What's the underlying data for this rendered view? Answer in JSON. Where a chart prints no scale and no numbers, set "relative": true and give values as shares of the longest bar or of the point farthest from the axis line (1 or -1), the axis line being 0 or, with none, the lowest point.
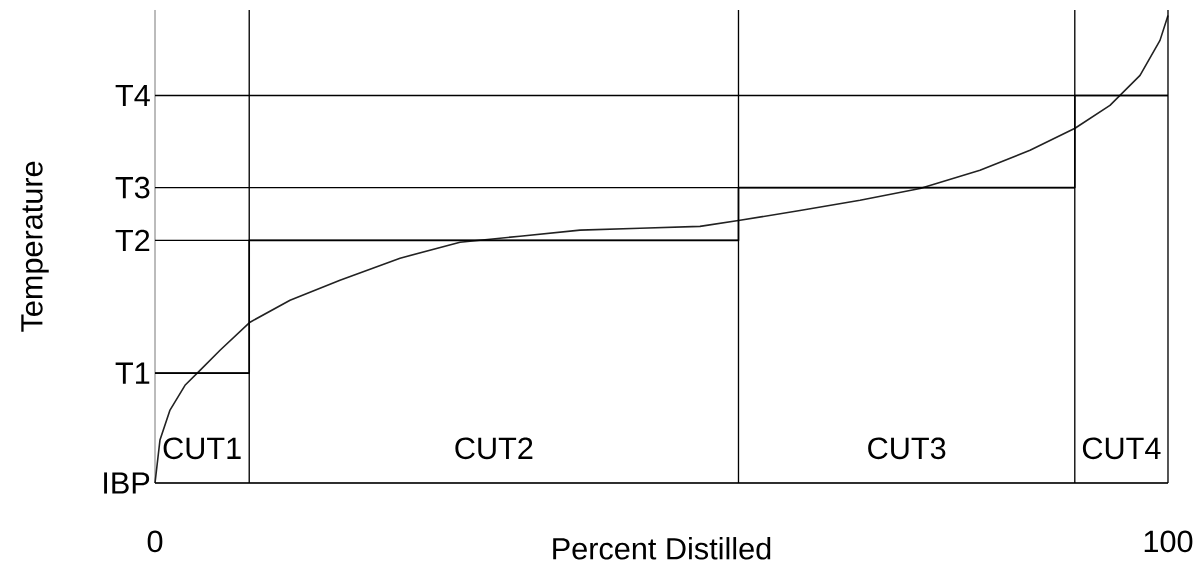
{
  "chart_data": {
    "type": "line",
    "relative": true,
    "xlabel": "Percent Distilled",
    "ylabel": "Temperature",
    "xlim": [
      0,
      100
    ],
    "xticks": [
      0,
      100
    ],
    "series": [
      {
        "color": "#222222",
        "x": [
          0,
          0.49,
          1.48,
          2.96,
          4.44,
          6.42,
          9.38,
          13.33,
          18.26,
          24.19,
          30.11,
          36.03,
          41.96,
          47.88,
          53.8,
          57.75,
          63.67,
          69.6,
          75.52,
          81.44,
          86.38,
          90.82,
          94.27,
          97.24,
          99.21,
          100
        ],
        "values": [
          0,
          0.092,
          0.156,
          0.209,
          0.241,
          0.284,
          0.344,
          0.391,
          0.434,
          0.481,
          0.515,
          0.528,
          0.541,
          0.545,
          0.549,
          0.562,
          0.583,
          0.605,
          0.63,
          0.669,
          0.712,
          0.759,
          0.808,
          0.872,
          0.947,
          1
        ]
      },
      {
        "type": "step",
        "color": "#000000",
        "x": [
          0,
          9.3,
          57.6,
          90.8,
          100
        ],
        "values": [
          0.235,
          0.519,
          0.632,
          0.829,
          0.829
        ]
      }
    ],
    "ref_lines": [
      {
        "axis": "y",
        "value": 0,
        "label": "IBP",
        "color": "#000000"
      },
      {
        "axis": "y",
        "value": 0.235,
        "label": "T1",
        "color": "#000000"
      },
      {
        "axis": "y",
        "value": 0.519,
        "label": "T2",
        "color": "#000000"
      },
      {
        "axis": "y",
        "value": 0.632,
        "label": "T3",
        "color": "#000000"
      },
      {
        "axis": "y",
        "value": 0.829,
        "label": "T4",
        "color": "#000000"
      },
      {
        "axis": "x",
        "value": 9.3,
        "color": "#000000"
      },
      {
        "axis": "x",
        "value": 57.6,
        "color": "#000000"
      },
      {
        "axis": "x",
        "value": 90.8,
        "color": "#000000"
      },
      {
        "axis": "x",
        "value": 100,
        "color": "#000000"
      }
    ],
    "annotations": [
      "CUT1",
      "CUT2",
      "CUT3",
      "CUT4"
    ]
  }
}
